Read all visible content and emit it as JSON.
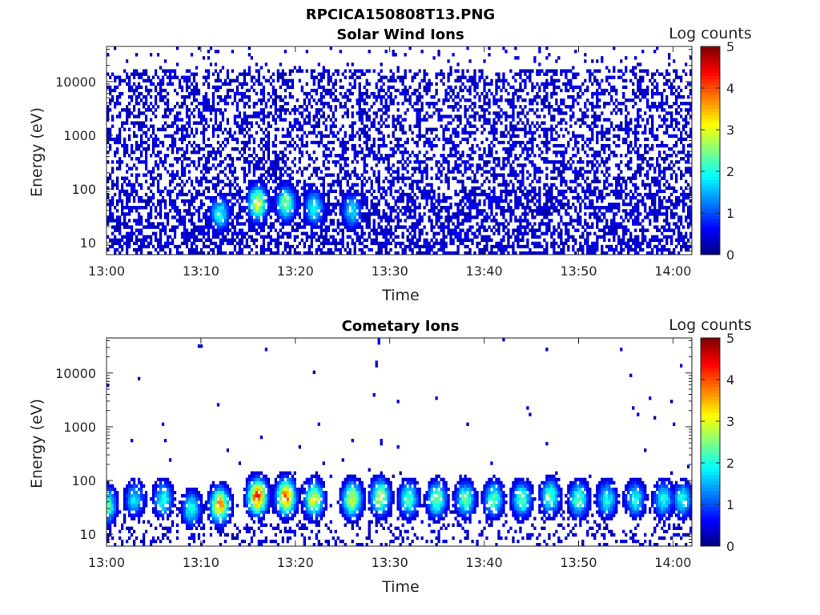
{
  "figure": {
    "title": "RPCICA150808T13.PNG"
  },
  "chart_data": [
    {
      "type": "heatmap",
      "title": "Solar Wind Ions",
      "xlabel": "Time",
      "ylabel": "Energy (eV)",
      "yscale": "log",
      "x_range": [
        "13:00",
        "14:02"
      ],
      "ylim": [
        6,
        45000
      ],
      "xticks": [
        "13:00",
        "13:10",
        "13:20",
        "13:30",
        "13:40",
        "13:50",
        "14:00"
      ],
      "yticks": [
        "10",
        "100",
        "1000",
        "10000"
      ],
      "colorbar": {
        "label": "Log counts",
        "range": [
          0,
          5
        ],
        "ticks": [
          "0",
          "1",
          "2",
          "3",
          "4",
          "5"
        ],
        "colormap": "jet"
      },
      "features": [
        {
          "time": "13:12",
          "energy_eV": 35,
          "log_counts": 2.0
        },
        {
          "time": "13:16",
          "energy_eV": 55,
          "log_counts": 3.0
        },
        {
          "time": "13:19",
          "energy_eV": 55,
          "log_counts": 2.5
        },
        {
          "time": "13:22",
          "energy_eV": 45,
          "log_counts": 2.0
        },
        {
          "time": "13:26",
          "energy_eV": 40,
          "log_counts": 1.8
        }
      ]
    },
    {
      "type": "heatmap",
      "title": "Cometary Ions",
      "xlabel": "Time",
      "ylabel": "Energy (eV)",
      "yscale": "log",
      "x_range": [
        "13:00",
        "14:02"
      ],
      "ylim": [
        6,
        45000
      ],
      "xticks": [
        "13:00",
        "13:10",
        "13:20",
        "13:30",
        "13:40",
        "13:50",
        "14:00"
      ],
      "yticks": [
        "10",
        "100",
        "1000",
        "10000"
      ],
      "colorbar": {
        "label": "Log counts",
        "range": [
          0,
          5
        ],
        "ticks": [
          "0",
          "1",
          "2",
          "3",
          "4",
          "5"
        ],
        "colormap": "jet"
      },
      "features": [
        {
          "time": "13:00",
          "energy_eV": 35,
          "log_counts": 2.5
        },
        {
          "time": "13:03",
          "energy_eV": 45,
          "log_counts": 1.8
        },
        {
          "time": "13:06",
          "energy_eV": 45,
          "log_counts": 2.0
        },
        {
          "time": "13:09",
          "energy_eV": 30,
          "log_counts": 2.0
        },
        {
          "time": "13:12",
          "energy_eV": 35,
          "log_counts": 3.5
        },
        {
          "time": "13:16",
          "energy_eV": 50,
          "log_counts": 4.0
        },
        {
          "time": "13:19",
          "energy_eV": 50,
          "log_counts": 3.8
        },
        {
          "time": "13:22",
          "energy_eV": 45,
          "log_counts": 3.0
        },
        {
          "time": "13:26",
          "energy_eV": 45,
          "log_counts": 3.0
        },
        {
          "time": "13:29",
          "energy_eV": 50,
          "log_counts": 2.8
        },
        {
          "time": "13:32",
          "energy_eV": 45,
          "log_counts": 2.3
        },
        {
          "time": "13:35",
          "energy_eV": 45,
          "log_counts": 2.5
        },
        {
          "time": "13:38",
          "energy_eV": 45,
          "log_counts": 2.3
        },
        {
          "time": "13:41",
          "energy_eV": 45,
          "log_counts": 2.3
        },
        {
          "time": "13:44",
          "energy_eV": 45,
          "log_counts": 2.3
        },
        {
          "time": "13:47",
          "energy_eV": 50,
          "log_counts": 2.3
        },
        {
          "time": "13:50",
          "energy_eV": 45,
          "log_counts": 2.3
        },
        {
          "time": "13:53",
          "energy_eV": 45,
          "log_counts": 2.0
        },
        {
          "time": "13:56",
          "energy_eV": 45,
          "log_counts": 2.0
        },
        {
          "time": "13:59",
          "energy_eV": 45,
          "log_counts": 2.0
        },
        {
          "time": "14:01",
          "energy_eV": 45,
          "log_counts": 2.0
        }
      ]
    }
  ]
}
